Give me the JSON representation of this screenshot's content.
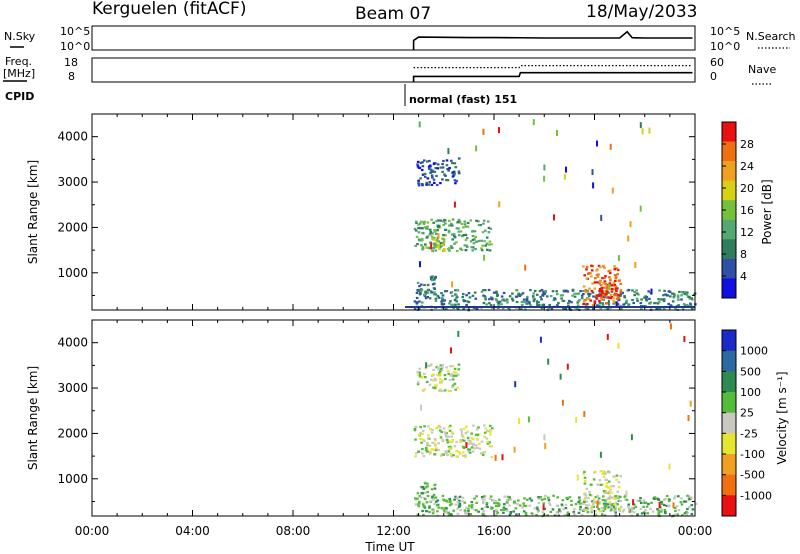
{
  "header": {
    "station": "Kerguelen (fitACF)",
    "beam": "Beam 07",
    "date": "18/May/2033"
  },
  "top_panels": {
    "nsky_label": "N.Sky",
    "nsearch_label": "N.Search",
    "freq_label_line1": "Freq.",
    "freq_label_line2": "[MHz]",
    "nave_label": "Nave",
    "cpid_label": "CPID",
    "noise_left_ticks": [
      "10^5",
      "10^0"
    ],
    "noise_right_ticks": [
      "10^5",
      "10^0"
    ],
    "freq_left_ticks": [
      "18",
      "8"
    ],
    "nave_right_ticks": [
      "60",
      "0"
    ],
    "cpid_text": "normal (fast) 151"
  },
  "colors": {
    "power": [
      "#1010e0",
      "#3050a8",
      "#2e7d5c",
      "#55a870",
      "#74c23c",
      "#d8d012",
      "#f0a020",
      "#f07010",
      "#e81010"
    ],
    "velocity": [
      "#1a2ac8",
      "#2b6aa0",
      "#2e8a50",
      "#55bb3a",
      "#c8c8c0",
      "#e6e630",
      "#f0a020",
      "#f07010",
      "#e81010"
    ]
  },
  "chart_data": [
    {
      "type": "line",
      "title": "N.Sky / N.Search",
      "x": [
        12.8,
        13.0,
        14.0,
        15.0,
        16.0,
        17.0,
        18.0,
        19.0,
        20.0,
        21.0,
        21.3,
        21.5,
        22.0,
        23.0,
        23.9
      ],
      "series": [
        {
          "name": "N.Sky",
          "values": [
            2.0,
            2.7,
            2.65,
            2.6,
            2.6,
            2.55,
            2.5,
            2.5,
            2.5,
            2.5,
            3.8,
            2.55,
            2.5,
            2.5,
            2.5
          ]
        }
      ],
      "ylim": [
        0,
        5
      ],
      "ylabel": "N.Sky"
    },
    {
      "type": "line",
      "title": "Freq. / Nave",
      "x": [
        12.8,
        17.0,
        17.05,
        23.9
      ],
      "series": [
        {
          "name": "Freq.",
          "values": [
            10.3,
            10.3,
            11.9,
            11.9
          ]
        },
        {
          "name": "Nave",
          "values": [
            36,
            36,
            41,
            41
          ]
        }
      ],
      "ylim": [
        8,
        18
      ]
    },
    {
      "type": "heatmap",
      "title": "Power",
      "xlabel": "",
      "ylabel": "Slant Range [km]",
      "xlim": [
        0,
        24
      ],
      "ylim": [
        180,
        4500
      ],
      "yticks": [
        1000,
        2000,
        3000,
        4000
      ],
      "colorbar_label": "Power [dB]",
      "colorbar_ticks": [
        "4",
        "8",
        "12",
        "16",
        "20",
        "24",
        "28"
      ],
      "regions": [
        {
          "x": [
            12.9,
            14.6
          ],
          "y": [
            2950,
            3550
          ],
          "level": 1
        },
        {
          "x": [
            12.8,
            15.9
          ],
          "y": [
            1500,
            2200
          ],
          "level": 3
        },
        {
          "x": [
            12.9,
            14.0
          ],
          "y": [
            1500,
            1800
          ],
          "level": 4
        },
        {
          "x": [
            12.9,
            13.7
          ],
          "y": [
            550,
            950
          ],
          "level": 2
        },
        {
          "x": [
            12.8,
            24.0
          ],
          "y": [
            200,
            650
          ],
          "level": 2
        },
        {
          "x": [
            19.5,
            21.0
          ],
          "y": [
            300,
            1200
          ],
          "level": 7
        },
        {
          "x": [
            20.0,
            21.0
          ],
          "y": [
            400,
            800
          ],
          "level": 8
        }
      ]
    },
    {
      "type": "heatmap",
      "title": "Velocity",
      "xlabel": "Time UT",
      "ylabel": "Slant Range [km]",
      "xlim": [
        0,
        24
      ],
      "ylim": [
        180,
        4500
      ],
      "yticks": [
        1000,
        2000,
        3000,
        4000
      ],
      "xtick_labels": [
        "00:00",
        "04:00",
        "08:00",
        "12:00",
        "16:00",
        "20:00",
        "00:00"
      ],
      "colorbar_label": "Velocity [m s⁻¹]",
      "colorbar_ticks": [
        "1000",
        "500",
        "100",
        "25",
        "-25",
        "-100",
        "-500",
        "-1000"
      ],
      "regions": [
        {
          "x": [
            12.9,
            14.6
          ],
          "y": [
            2950,
            3550
          ],
          "level": 4
        },
        {
          "x": [
            12.8,
            15.9
          ],
          "y": [
            1500,
            2200
          ],
          "level": 4
        },
        {
          "x": [
            12.9,
            13.7
          ],
          "y": [
            550,
            950
          ],
          "level": 3
        },
        {
          "x": [
            12.8,
            24.0
          ],
          "y": [
            200,
            650
          ],
          "level": 3
        },
        {
          "x": [
            19.5,
            21.0
          ],
          "y": [
            300,
            1200
          ],
          "level": 4
        }
      ]
    }
  ]
}
